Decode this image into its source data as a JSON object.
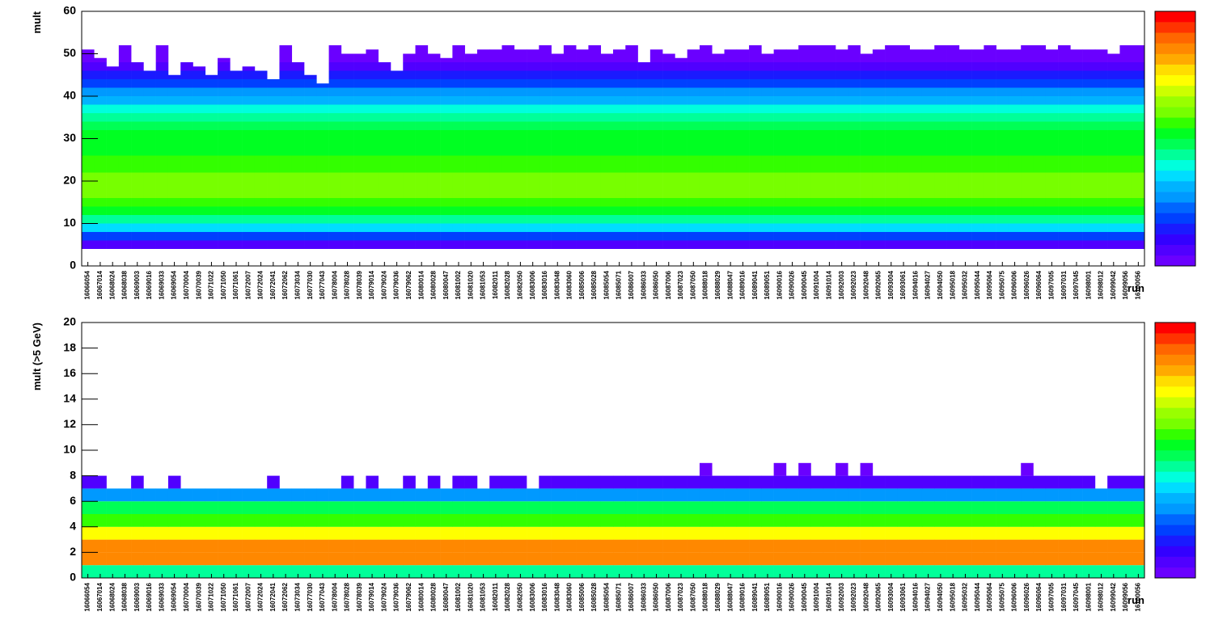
{
  "chart_data": [
    {
      "type": "heatmap",
      "ylabel": "mult",
      "xlabel": "run",
      "categories": [
        "16066054",
        "16067014",
        "16068024",
        "16068038",
        "16069003",
        "16069016",
        "16069033",
        "16069054",
        "16070004",
        "16070039",
        "16071022",
        "16071050",
        "16071061",
        "16072007",
        "16072024",
        "16072041",
        "16072062",
        "16073034",
        "16077030",
        "16077043",
        "16078004",
        "16078028",
        "16078039",
        "16079014",
        "16079024",
        "16079036",
        "16079062",
        "16080014",
        "16080028",
        "16080047",
        "16081002",
        "16081020",
        "16081053",
        "16082011",
        "16082028",
        "16082050",
        "16083006",
        "16083016",
        "16083048",
        "16083060",
        "16085006",
        "16085028",
        "16085054",
        "16085071",
        "16086007",
        "16086033",
        "16086050",
        "16087006",
        "16087023",
        "16087050",
        "16088018",
        "16088029",
        "16088047",
        "16089016",
        "16089041",
        "16089051",
        "16090016",
        "16090026",
        "16090045",
        "16091004",
        "16091014",
        "16092003",
        "16092023",
        "16092048",
        "16092065",
        "16093004",
        "16093061",
        "16094016",
        "16094027",
        "16094050",
        "16095018",
        "16095032",
        "16095044",
        "16095064",
        "16095075",
        "16096006",
        "16096026",
        "16096064",
        "16097005",
        "16097031",
        "16097045",
        "16098001",
        "16098012",
        "16099042",
        "16099056",
        "16100056"
      ],
      "upper": [
        51,
        49,
        47,
        52,
        48,
        46,
        52,
        45,
        48,
        47,
        45,
        49,
        46,
        47,
        46,
        44,
        52,
        48,
        45,
        43,
        52,
        50,
        50,
        51,
        48,
        46,
        50,
        52,
        50,
        49,
        52,
        50,
        51,
        51,
        52,
        51,
        51,
        52,
        50,
        52,
        51,
        52,
        50,
        51,
        52,
        48,
        51,
        50,
        49,
        51,
        52,
        50,
        51,
        51,
        52,
        50,
        51,
        51,
        52,
        52,
        52,
        51,
        52,
        50,
        51,
        52,
        52,
        51,
        51,
        52,
        52,
        51,
        51,
        52,
        51,
        51,
        52,
        52,
        51,
        52,
        51,
        51,
        51,
        50,
        52,
        52
      ],
      "ybins": [
        0,
        2,
        4,
        6,
        8,
        10,
        12,
        14,
        16,
        18,
        20,
        22,
        24,
        26,
        28,
        30,
        32,
        34,
        36,
        38,
        40,
        42,
        44,
        46,
        48,
        50,
        52,
        54,
        56,
        58,
        60
      ],
      "density": [
        0,
        0,
        0.05,
        0.2,
        0.35,
        0.45,
        0.52,
        0.58,
        0.62,
        0.62,
        0.6,
        0.57,
        0.55,
        0.53,
        0.52,
        0.5,
        0.47,
        0.43,
        0.38,
        0.33,
        0.26,
        0.2,
        0.14,
        0.08,
        0.04,
        0.02,
        0,
        0,
        0,
        0
      ],
      "ylim": [
        0,
        60
      ],
      "yticks": [
        0,
        10,
        20,
        30,
        40,
        50,
        60
      ],
      "palette": [
        "#6a00ff",
        "#5000ff",
        "#3300ff",
        "#1a1aff",
        "#0040ff",
        "#0066ff",
        "#0099ff",
        "#00b3ff",
        "#00ddff",
        "#00ffdd",
        "#00ff99",
        "#00ff55",
        "#00ff22",
        "#33ff00",
        "#77ff00",
        "#99ff00",
        "#ccff00",
        "#ffff00",
        "#ffdd00",
        "#ffaa00",
        "#ff8800",
        "#ff6600",
        "#ff3300",
        "#ff0000"
      ]
    },
    {
      "type": "heatmap",
      "ylabel": "mult (>5 GeV)",
      "xlabel": "run",
      "categories": [
        "16066054",
        "16067014",
        "16068024",
        "16068038",
        "16069003",
        "16069016",
        "16069033",
        "16069054",
        "16070004",
        "16070039",
        "16071022",
        "16071050",
        "16071061",
        "16072007",
        "16072024",
        "16072041",
        "16072062",
        "16073034",
        "16077030",
        "16077043",
        "16078004",
        "16078028",
        "16078039",
        "16079014",
        "16079024",
        "16079036",
        "16079062",
        "16080014",
        "16080028",
        "16080047",
        "16081002",
        "16081020",
        "16081053",
        "16082011",
        "16082028",
        "16082050",
        "16083006",
        "16083016",
        "16083048",
        "16083060",
        "16085006",
        "16085028",
        "16085054",
        "16085071",
        "16086007",
        "16086033",
        "16086050",
        "16087006",
        "16087023",
        "16087050",
        "16088018",
        "16088029",
        "16088047",
        "16089016",
        "16089041",
        "16089051",
        "16090016",
        "16090026",
        "16090045",
        "16091004",
        "16091014",
        "16092003",
        "16092023",
        "16092048",
        "16092065",
        "16093004",
        "16093061",
        "16094016",
        "16094027",
        "16094050",
        "16095018",
        "16095032",
        "16095044",
        "16095064",
        "16095075",
        "16096006",
        "16096026",
        "16096064",
        "16097005",
        "16097031",
        "16097045",
        "16098001",
        "16098012",
        "16099042",
        "16099056",
        "16100056"
      ],
      "upper": [
        8,
        8,
        7,
        7,
        8,
        7,
        7,
        8,
        7,
        7,
        7,
        7,
        7,
        7,
        7,
        8,
        7,
        7,
        7,
        7,
        7,
        8,
        7,
        8,
        7,
        7,
        8,
        7,
        8,
        7,
        8,
        8,
        7,
        8,
        8,
        8,
        7,
        8,
        8,
        8,
        8,
        8,
        8,
        8,
        8,
        8,
        8,
        8,
        8,
        8,
        9,
        8,
        8,
        8,
        8,
        8,
        9,
        8,
        9,
        8,
        8,
        9,
        8,
        9,
        8,
        8,
        8,
        8,
        8,
        8,
        8,
        8,
        8,
        8,
        8,
        8,
        9,
        8,
        8,
        8,
        8,
        8,
        7,
        8,
        8,
        8
      ],
      "ybins": [
        0,
        1,
        2,
        3,
        4,
        5,
        6,
        7,
        8,
        9,
        10,
        11,
        12,
        13,
        14,
        15,
        16,
        17,
        18,
        19,
        20
      ],
      "density": [
        0.45,
        0.85,
        0.85,
        0.72,
        0.58,
        0.48,
        0.28,
        0.05,
        0.02,
        0,
        0,
        0,
        0,
        0,
        0,
        0,
        0,
        0,
        0,
        0
      ],
      "ylim": [
        0,
        20
      ],
      "yticks": [
        0,
        2,
        4,
        6,
        8,
        10,
        12,
        14,
        16,
        18,
        20
      ],
      "palette": [
        "#6a00ff",
        "#5000ff",
        "#3300ff",
        "#1a1aff",
        "#0040ff",
        "#0066ff",
        "#0099ff",
        "#00b3ff",
        "#00ddff",
        "#00ffdd",
        "#00ff99",
        "#00ff55",
        "#00ff22",
        "#33ff00",
        "#77ff00",
        "#99ff00",
        "#ccff00",
        "#ffff00",
        "#ffdd00",
        "#ffaa00",
        "#ff8800",
        "#ff6600",
        "#ff3300",
        "#ff0000"
      ]
    }
  ]
}
